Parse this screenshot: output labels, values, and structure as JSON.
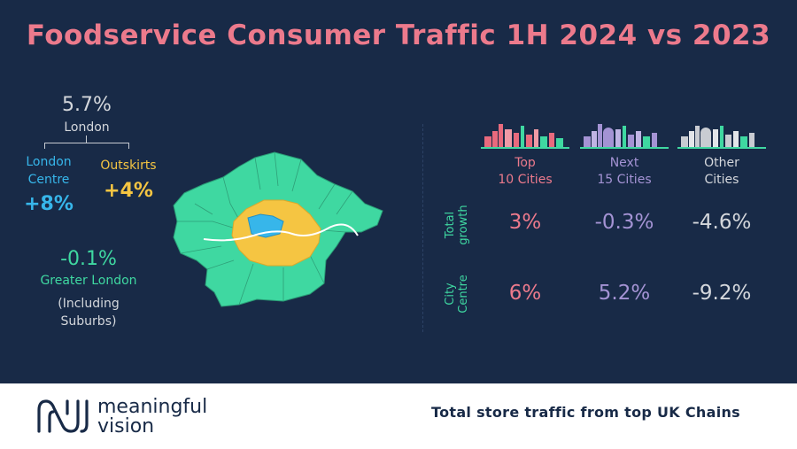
{
  "title": "Foodservice Consumer Traffic 1H 2024 vs 2023",
  "london": {
    "total_value": "5.7%",
    "total_label": "London",
    "centre_label": "London Centre",
    "centre_value": "+8%",
    "outskirts_label": "Outskirts",
    "outskirts_value": "+4%",
    "greater_value": "-0.1%",
    "greater_label": "Greater London",
    "greater_note": "(Including Suburbs)"
  },
  "colors": {
    "background": "#182a47",
    "title": "#ec7a8c",
    "centre": "#37b6ea",
    "outskirts": "#f5c542",
    "greater": "#3fd8a1",
    "top_cities": "#ec7a8c",
    "next_cities": "#a493d4",
    "other_cities": "#d4d7dc"
  },
  "table": {
    "columns": [
      {
        "label_line1": "Top",
        "label_line2": "10 Cities",
        "icon": "skyline-icon"
      },
      {
        "label_line1": "Next",
        "label_line2": "15 Cities",
        "icon": "skyline-icon"
      },
      {
        "label_line1": "Other",
        "label_line2": "Cities",
        "icon": "skyline-icon"
      }
    ],
    "rows": [
      {
        "label_line1": "Total",
        "label_line2": "growth",
        "values": [
          "3%",
          "-0.3%",
          "-4.6%"
        ]
      },
      {
        "label_line1": "City",
        "label_line2": "Centre",
        "values": [
          "6%",
          "5.2%",
          "-9.2%"
        ]
      }
    ]
  },
  "footer": {
    "logo_line1": "meaningful",
    "logo_line2": "vision",
    "tagline": "Total store traffic from top UK Chains"
  }
}
